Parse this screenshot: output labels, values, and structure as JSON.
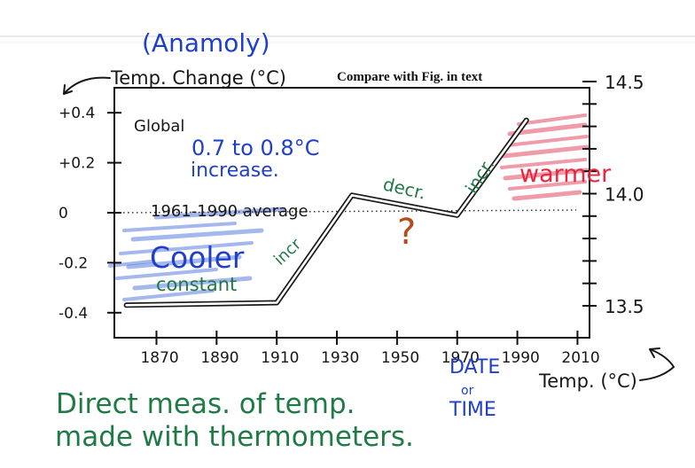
{
  "chart_data": {
    "type": "line",
    "title": "Compare with Fig.        in text",
    "left_axis": {
      "label": "Temp. Change (°C)",
      "label_note": "(Anamoly)",
      "ticks": [
        "+0.4",
        "+0.2",
        "0",
        "-0.2",
        "-0.4"
      ],
      "tick_values": [
        0.4,
        0.2,
        0.0,
        -0.2,
        -0.4
      ]
    },
    "right_axis": {
      "label": "Temp. (°C)",
      "ticks": [
        "14.5",
        "14.0",
        "13.5"
      ],
      "tick_values": [
        14.5,
        14.0,
        13.5
      ]
    },
    "x_axis": {
      "label": "DATE or TIME",
      "ticks": [
        "1870",
        "1890",
        "1910",
        "1930",
        "1950",
        "1970",
        "1990",
        "2010"
      ],
      "tick_values": [
        1870,
        1890,
        1910,
        1930,
        1950,
        1970,
        1990,
        2010
      ]
    },
    "xlim": [
      1856,
      2014
    ],
    "ylim": [
      -0.5,
      0.5
    ],
    "grid": false,
    "series": [
      {
        "x": [
          1860,
          1910,
          1935,
          1970,
          1993
        ],
        "y": [
          -0.37,
          -0.36,
          0.07,
          -0.01,
          0.37
        ]
      }
    ],
    "reference_line": {
      "label": "1961-1990 average",
      "y": 0.0
    },
    "annotations": {
      "global": "Global",
      "increase_1": "0.7 to 0.8°C",
      "increase_2": "increase.",
      "cooler": "Cooler",
      "constant": "constant",
      "incr_1": "incr",
      "decr": "decr.",
      "incr_2": "incr.",
      "question": "?",
      "warmer": "warmer"
    },
    "colors": {
      "line": "#1a1a1a",
      "axis": "#111111",
      "cool_shading": "#5a7fe0",
      "warm_shading": "#e24a64",
      "blue_ink": "#1f3fc8",
      "green_ink": "#1f7a46",
      "red_ink": "#e8263f",
      "brown_ink": "#b54a1a",
      "black_ink": "#171717"
    }
  },
  "footer_note": {
    "line1": "Direct meas. of temp.",
    "line2": "made with thermometers."
  }
}
